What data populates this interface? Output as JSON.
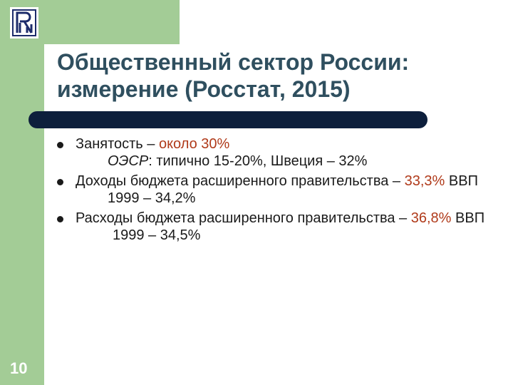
{
  "slide": {
    "title_line1": "Общественный сектор России:",
    "title_line2": "измерение (Росстат, 2015)",
    "page_number": "10",
    "bullets": [
      {
        "text": "Занятость – ",
        "highlight": "около 30%",
        "after": "",
        "subs": [
          {
            "italic": "ОЭСР",
            "text": ": типично 15-20%, Швеция – 32%"
          }
        ]
      },
      {
        "text": "Доходы бюджета расширенного правительства – ",
        "highlight": "33,3%",
        "after": " ВВП",
        "subs": [
          {
            "italic": "",
            "text": "1999 – 34,2%"
          }
        ]
      },
      {
        "text": "Расходы бюджета расширенного правительства – ",
        "highlight": "36,8%",
        "after": " ВВП",
        "subs": [
          {
            "italic": "",
            "text": "1999 – 34,5%"
          }
        ]
      }
    ]
  },
  "colors": {
    "accent_green": "#a3cc96",
    "title": "#2f4f5f",
    "rule": "#0d1f3c",
    "highlight": "#b03a1a"
  },
  "icons": {
    "logo": "university-logo-icon",
    "bullet": "bullet-dot-icon"
  }
}
